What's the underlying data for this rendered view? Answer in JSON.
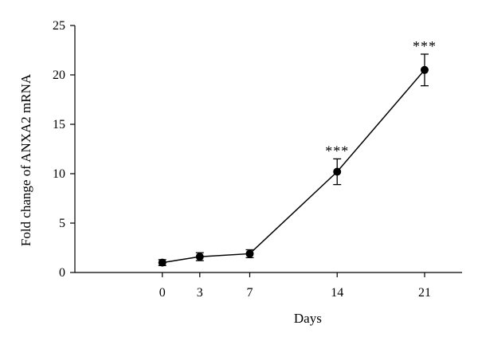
{
  "chart_data": {
    "type": "line",
    "xlabel": "Days",
    "ylabel": "Fold change of ANXA2 mRNA",
    "xlim": [
      -7,
      24
    ],
    "ylim": [
      0,
      25
    ],
    "x_ticks": [
      0,
      3,
      7,
      14,
      21
    ],
    "y_ticks": [
      0,
      5,
      10,
      15,
      20,
      25
    ],
    "grid": false,
    "series": [
      {
        "x": [
          0,
          3,
          7,
          14,
          21
        ],
        "y": [
          1.0,
          1.6,
          1.9,
          10.2,
          20.5
        ],
        "error": [
          0.3,
          0.4,
          0.4,
          1.3,
          1.6
        ],
        "annotations": [
          "",
          "",
          "",
          "***",
          "***"
        ]
      }
    ]
  }
}
